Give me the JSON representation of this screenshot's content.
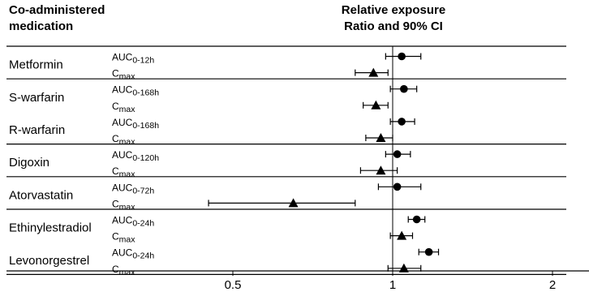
{
  "chart_data": {
    "type": "forest",
    "header": {
      "left_line1": "Co-administered",
      "left_line2": "medication",
      "right_line1": "Relative exposure",
      "right_line2": "Ratio and 90% CI"
    },
    "x_scale": "log",
    "x_ticks": [
      {
        "value": 0.5,
        "label": "0.5"
      },
      {
        "value": 1,
        "label": "1"
      },
      {
        "value": 2,
        "label": "2"
      }
    ],
    "reference_line": 1,
    "groups": [
      {
        "drug": "Metformin",
        "rows": [
          {
            "param": "AUC",
            "sub": "0-12h",
            "marker": "circle",
            "estimate": 1.04,
            "lower": 0.97,
            "upper": 1.13
          },
          {
            "param": "C",
            "sub": "max",
            "marker": "triangle",
            "estimate": 0.92,
            "lower": 0.85,
            "upper": 0.98
          }
        ]
      },
      {
        "drug": "S-warfarin",
        "rows": [
          {
            "param": "AUC",
            "sub": "0-168h",
            "marker": "circle",
            "estimate": 1.05,
            "lower": 0.99,
            "upper": 1.11
          },
          {
            "param": "C",
            "sub": "max",
            "marker": "triangle",
            "estimate": 0.93,
            "lower": 0.88,
            "upper": 0.98
          }
        ]
      },
      {
        "drug": "R-warfarin",
        "rows": [
          {
            "param": "AUC",
            "sub": "0-168h",
            "marker": "circle",
            "estimate": 1.04,
            "lower": 0.99,
            "upper": 1.1
          },
          {
            "param": "C",
            "sub": "max",
            "marker": "triangle",
            "estimate": 0.95,
            "lower": 0.89,
            "upper": 1.0
          }
        ]
      },
      {
        "drug": "Digoxin",
        "rows": [
          {
            "param": "AUC",
            "sub": "0-120h",
            "marker": "circle",
            "estimate": 1.02,
            "lower": 0.97,
            "upper": 1.08
          },
          {
            "param": "C",
            "sub": "max",
            "marker": "triangle",
            "estimate": 0.95,
            "lower": 0.87,
            "upper": 1.02
          }
        ]
      },
      {
        "drug": "Atorvastatin",
        "rows": [
          {
            "param": "AUC",
            "sub": "0-72h",
            "marker": "circle",
            "estimate": 1.02,
            "lower": 0.94,
            "upper": 1.13
          },
          {
            "param": "C",
            "sub": "max",
            "marker": "triangle",
            "estimate": 0.65,
            "lower": 0.45,
            "upper": 0.85
          }
        ]
      },
      {
        "drug": "Ethinylestradiol",
        "rows": [
          {
            "param": "AUC",
            "sub": "0-24h",
            "marker": "circle",
            "estimate": 1.11,
            "lower": 1.07,
            "upper": 1.15
          },
          {
            "param": "C",
            "sub": "max",
            "marker": "triangle",
            "estimate": 1.04,
            "lower": 0.99,
            "upper": 1.09
          }
        ]
      },
      {
        "drug": "Levonorgestrel",
        "rows": [
          {
            "param": "AUC",
            "sub": "0-24h",
            "marker": "circle",
            "estimate": 1.17,
            "lower": 1.12,
            "upper": 1.22
          },
          {
            "param": "C",
            "sub": "max",
            "marker": "triangle",
            "estimate": 1.05,
            "lower": 0.98,
            "upper": 1.13
          }
        ]
      }
    ]
  }
}
